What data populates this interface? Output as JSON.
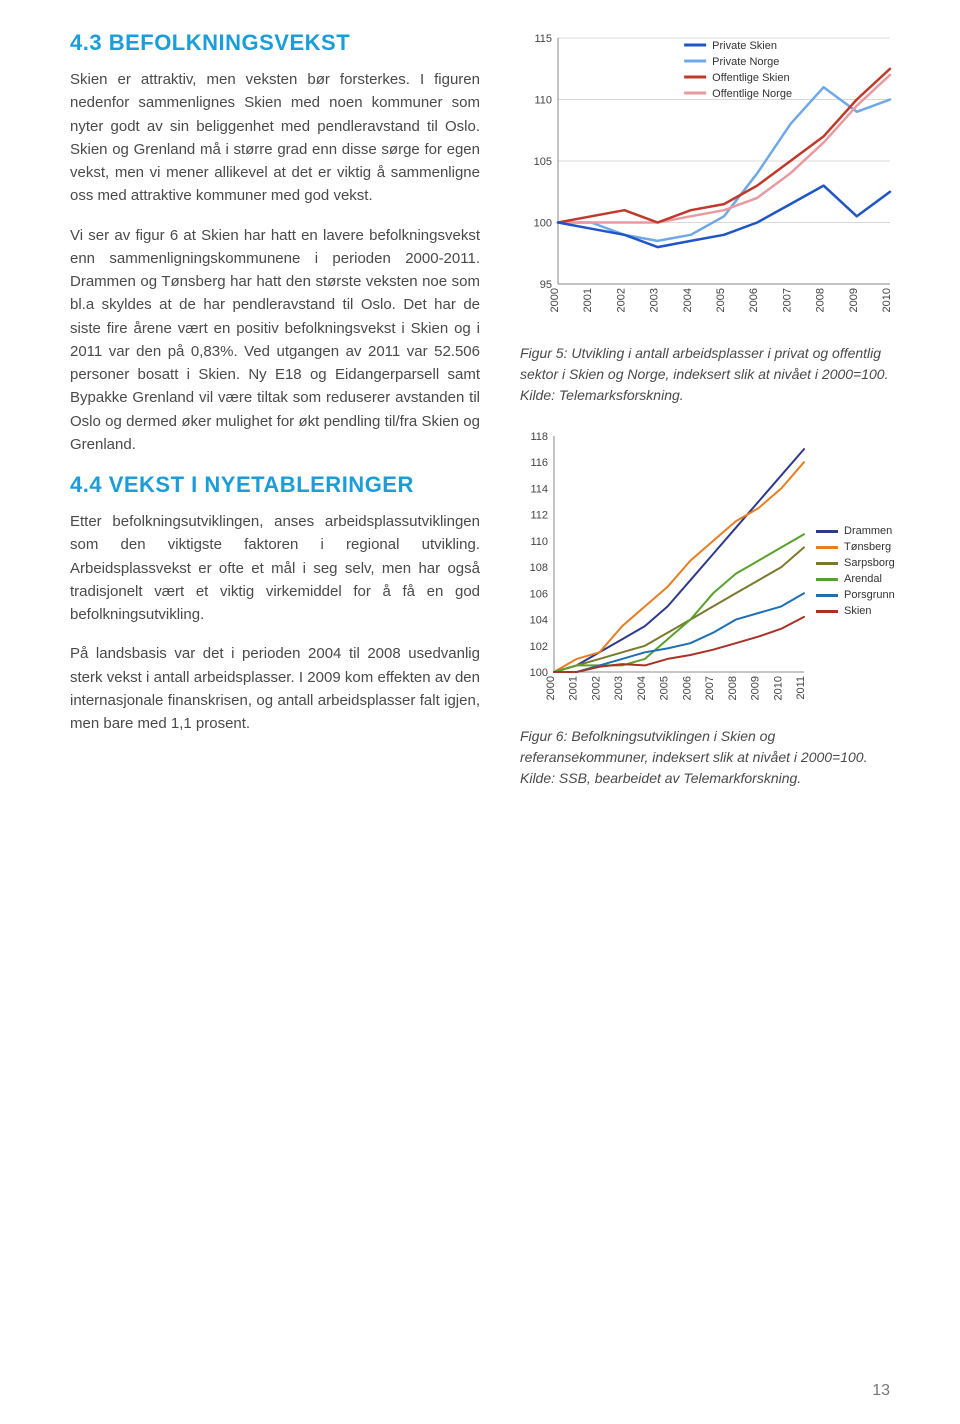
{
  "left": {
    "heading1": "4.3  BEFOLKNINGSVEKST",
    "p1": "Skien er attraktiv, men veksten bør for­sterkes. I figuren nedenfor sammen­lignes Skien med noen kommuner som nyter godt av sin beliggenhet med pendleravstand til Oslo. Skien og Grenland må i større grad enn disse sørge for egen vekst, men vi mener allikevel at det er viktig å sammenligne oss med attraktive kommuner med god vekst.",
    "p2": "Vi ser av figur 6 at Skien har hatt en lavere befolkningsvekst enn sammen­ligningskommunene i perioden 2000-2011. Drammen og Tønsberg har hatt den største veksten noe som bl.a skyldes at de har pendleravstand til Oslo. Det har de siste fire årene vært en positiv befolkningsvekst i Skien og i 2011 var den på 0,83%. Ved utgangen av 2011 var 52.506 personer bosatt i Skien. Ny E18 og Eidangerparsell samt Bypakke Grenland vil være tiltak som reduserer avstanden til Oslo og dermed øker mulighet for økt pendling til/fra Skien og Grenland.",
    "heading2": "4.4   VEKST I NYETABLERINGER",
    "p3": "Etter befolkningsutviklingen, anses arbeidsplassutviklingen som den viktigste faktoren i regional utvikling. Arbeidsplassvekst er ofte et mål i seg selv, men har også tradisjonelt vært et viktig virkemiddel for å få en god befolkningsutvikling.",
    "p4": "På landsbasis var det i perioden 2004 til 2008 usedvanlig sterk vekst i antall arbeidsplasser. I 2009 kom effekten av den internasjonale finanskrisen, og antall arbeidsplasser falt igjen, men bare med 1,1 prosent."
  },
  "chart1": {
    "type": "line",
    "background_color": "#ffffff",
    "grid_color": "#d9d9d9",
    "axis_font": 11,
    "ylim": [
      95,
      115
    ],
    "ytick_step": 5,
    "x_labels": [
      "2000",
      "2001",
      "2002",
      "2003",
      "2004",
      "2005",
      "2006",
      "2007",
      "2008",
      "2009",
      "2010"
    ],
    "legend": [
      {
        "label": "Private Skien",
        "color": "#1f55c4"
      },
      {
        "label": "Private Norge",
        "color": "#6fa8e8"
      },
      {
        "label": "Offentlige Skien",
        "color": "#c0392b"
      },
      {
        "label": "Offentlige Norge",
        "color": "#e79aa0"
      }
    ],
    "series": {
      "private_skien": [
        100,
        99.5,
        99,
        98,
        98.5,
        99,
        100,
        101.5,
        103,
        100.5,
        102.5
      ],
      "private_norge": [
        100,
        100,
        99,
        98.5,
        99,
        100.5,
        104,
        108,
        111,
        109,
        110
      ],
      "off_skien": [
        100,
        100.5,
        101,
        100,
        101,
        101.5,
        103,
        105,
        107,
        110,
        112.5
      ],
      "off_norge": [
        100,
        100,
        100,
        100,
        100.5,
        101,
        102,
        104,
        106.5,
        109.5,
        112
      ]
    },
    "line_width": 2.5
  },
  "caption1": "Figur 5: Utvikling i antall arbeidsplasser i privat og offentlig sektor i Skien og Norge, indeksert slik at nivået i 2000=100. Kilde: Telemarksforskning.",
  "chart2": {
    "type": "line",
    "background_color": "#ffffff",
    "grid_color": "#eeeeee",
    "axis_font": 11,
    "ylim": [
      100,
      118
    ],
    "ytick_step": 2,
    "x_labels": [
      "2000",
      "2001",
      "2002",
      "2003",
      "2004",
      "2005",
      "2006",
      "2007",
      "2008",
      "2009",
      "2010",
      "2011"
    ],
    "legend": [
      {
        "label": "Drammen",
        "color": "#2e3a8c"
      },
      {
        "label": "Tønsberg",
        "color": "#e67e22"
      },
      {
        "label": "Sarpsborg",
        "color": "#7a7a2e"
      },
      {
        "label": "Arendal",
        "color": "#5aa02c"
      },
      {
        "label": "Porsgrunn",
        "color": "#1f6fb4"
      },
      {
        "label": "Skien",
        "color": "#a93226"
      }
    ],
    "series": {
      "drammen": [
        100,
        100.5,
        101.5,
        102.5,
        103.5,
        105,
        107,
        109,
        111,
        113,
        115,
        117
      ],
      "tonsberg": [
        100,
        101,
        101.5,
        103.5,
        105,
        106.5,
        108.5,
        110,
        111.5,
        112.5,
        114,
        116
      ],
      "sarpsborg": [
        100,
        100.5,
        101,
        101.5,
        102,
        103,
        104,
        105,
        106,
        107,
        108,
        109.5
      ],
      "arendal": [
        100,
        100.5,
        100.5,
        100.5,
        101,
        102.5,
        104,
        106,
        107.5,
        108.5,
        109.5,
        110.5
      ],
      "porsgrunn": [
        100,
        100,
        100.5,
        101,
        101.5,
        101.8,
        102.2,
        103,
        104,
        104.5,
        105,
        106
      ],
      "skien": [
        100,
        100,
        100.4,
        100.6,
        100.5,
        101,
        101.3,
        101.7,
        102.2,
        102.7,
        103.3,
        104.2
      ]
    },
    "line_width": 2
  },
  "caption2": "Figur 6: Befolkningsutviklingen i Skien og referansekommuner, indeksert slik at nivået i 2000=100. Kilde: SSB, bearbeidet av Telemarkforskning.",
  "page_number": "13",
  "colors": {
    "heading": "#1b9dd9",
    "body": "#4a4a4a"
  }
}
